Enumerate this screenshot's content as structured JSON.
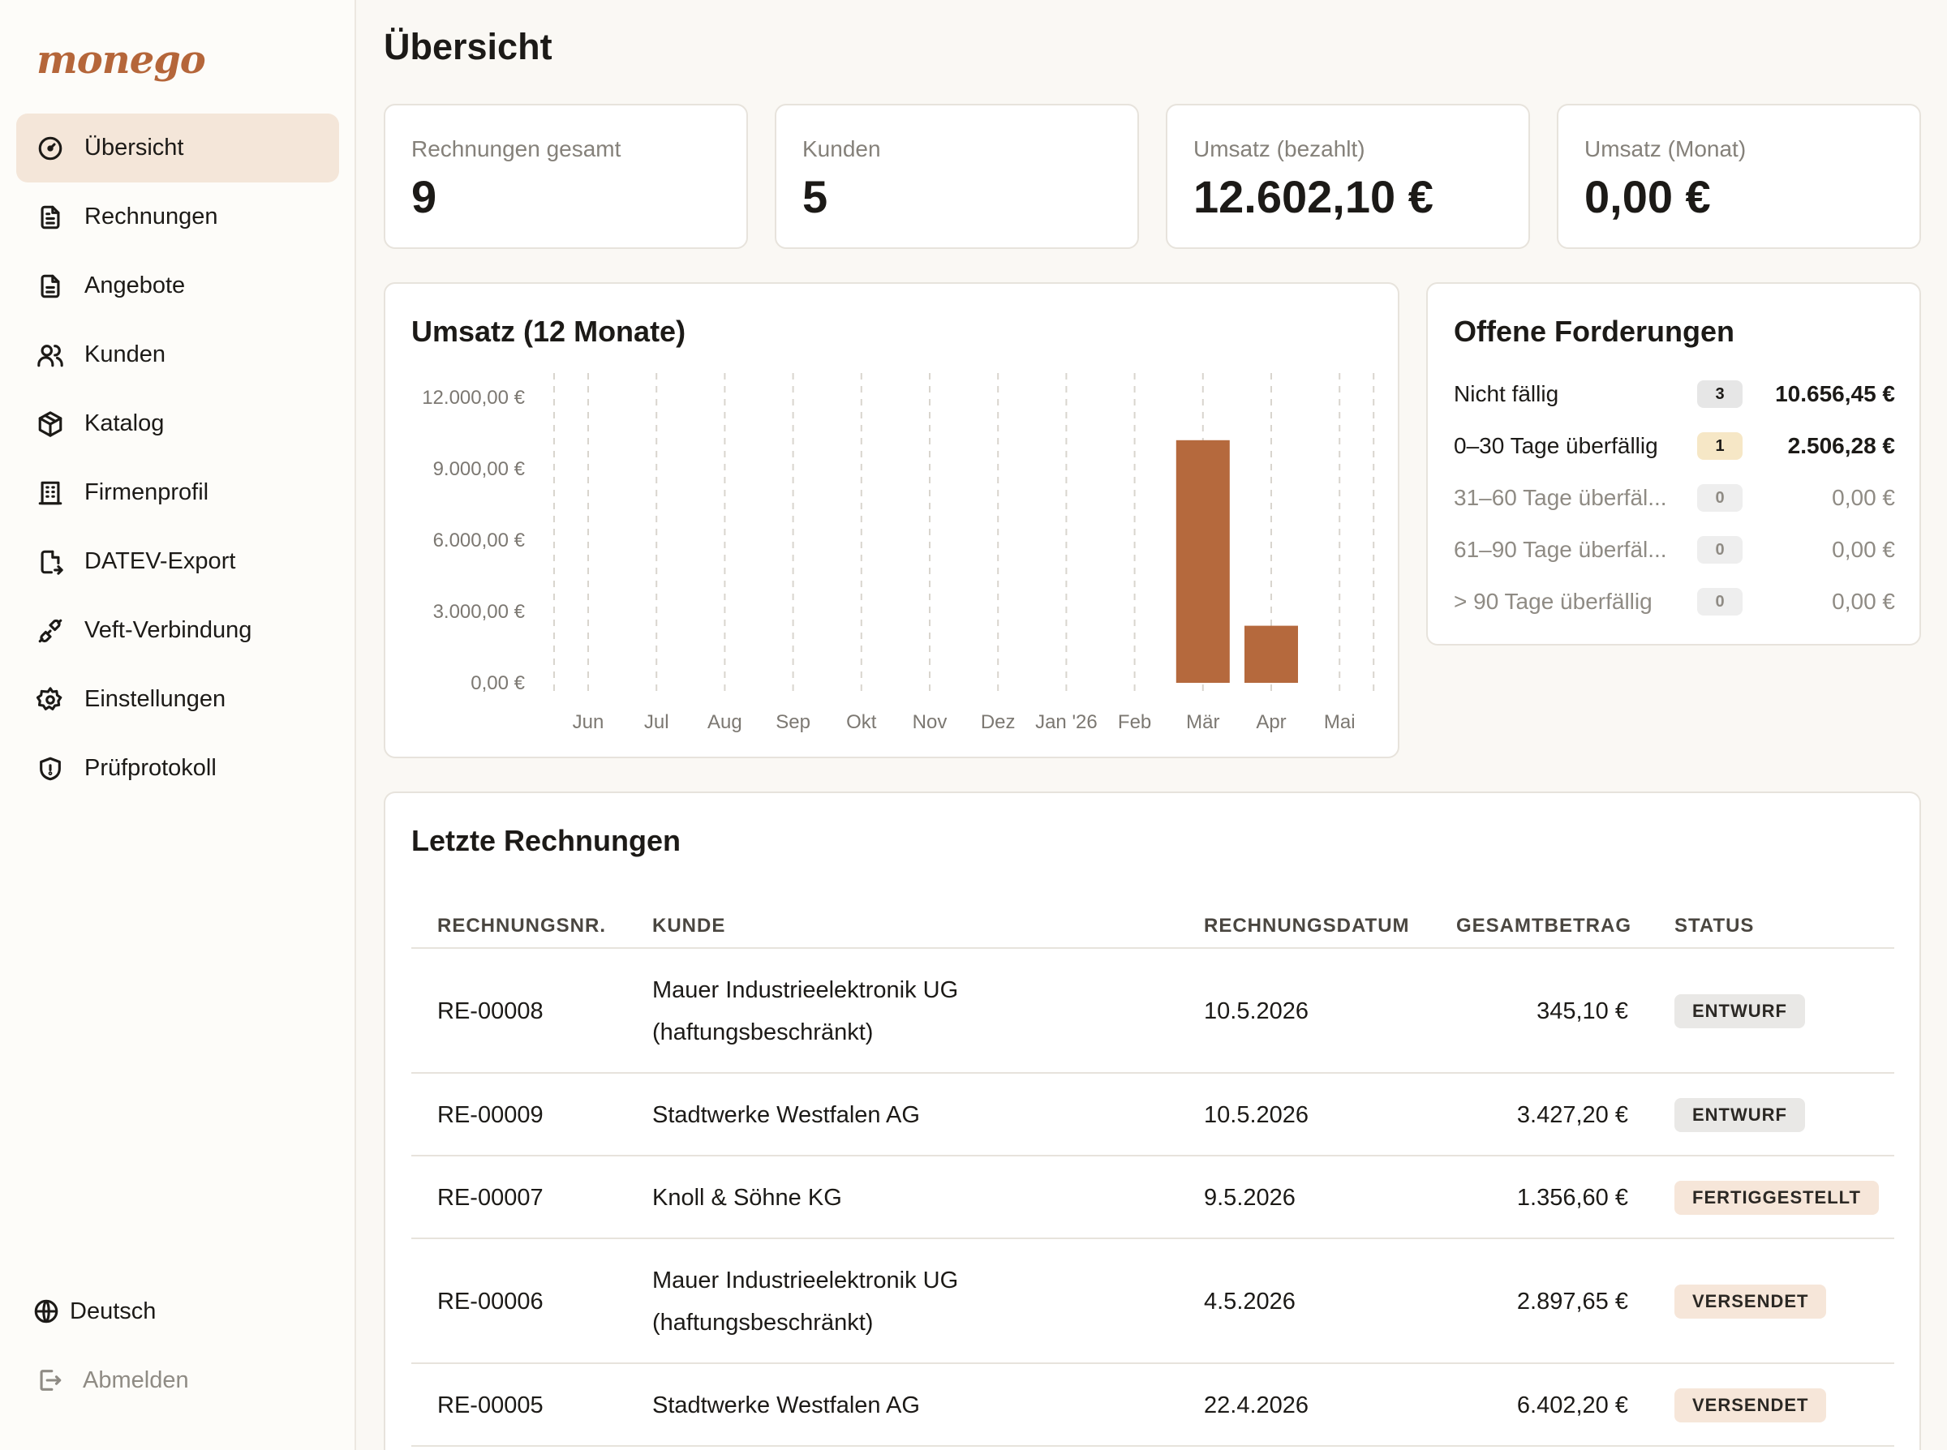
{
  "app": {
    "logo": "monego"
  },
  "sidebar": {
    "items": [
      {
        "label": "Übersicht",
        "icon": "gauge-icon",
        "active": true
      },
      {
        "label": "Rechnungen",
        "icon": "file-text-icon"
      },
      {
        "label": "Angebote",
        "icon": "file-icon"
      },
      {
        "label": "Kunden",
        "icon": "users-icon"
      },
      {
        "label": "Katalog",
        "icon": "package-icon"
      },
      {
        "label": "Firmenprofil",
        "icon": "building-icon"
      },
      {
        "label": "DATEV-Export",
        "icon": "file-export-icon"
      },
      {
        "label": "Veft-Verbindung",
        "icon": "plug-icon"
      },
      {
        "label": "Einstellungen",
        "icon": "gear-icon"
      },
      {
        "label": "Prüfprotokoll",
        "icon": "shield-icon"
      }
    ],
    "language": "Deutsch",
    "logout": "Abmelden"
  },
  "page": {
    "title": "Übersicht"
  },
  "stats": [
    {
      "label": "Rechnungen gesamt",
      "value": "9"
    },
    {
      "label": "Kunden",
      "value": "5"
    },
    {
      "label": "Umsatz (bezahlt)",
      "value": "12.602,10 €"
    },
    {
      "label": "Umsatz (Monat)",
      "value": "0,00 €"
    }
  ],
  "revenue_chart": {
    "title": "Umsatz (12 Monate)"
  },
  "chart_data": {
    "type": "bar",
    "title": "Umsatz (12 Monate)",
    "categories": [
      "Jun",
      "Jul",
      "Aug",
      "Sep",
      "Okt",
      "Nov",
      "Dez",
      "Jan '26",
      "Feb",
      "Mär",
      "Apr",
      "Mai"
    ],
    "values": [
      0,
      0,
      0,
      0,
      0,
      0,
      0,
      0,
      0,
      10200,
      2400,
      0
    ],
    "yticks": [
      "12.000,00 €",
      "9.000,00 €",
      "6.000,00 €",
      "3.000,00 €",
      "0,00 €"
    ],
    "ytick_values": [
      12000,
      9000,
      6000,
      3000,
      0
    ],
    "ylim": [
      0,
      12000
    ],
    "bar_color": "#b5693d",
    "grid": "vertical-dashed"
  },
  "receivables": {
    "title": "Offene Forderungen",
    "rows": [
      {
        "label": "Nicht fällig",
        "count": "3",
        "amount": "10.656,45 €",
        "badge_color": "#e6e6e6",
        "dim": false
      },
      {
        "label": "0–30 Tage überfällig",
        "count": "1",
        "amount": "2.506,28 €",
        "badge_color": "#f6e7c6",
        "dim": false
      },
      {
        "label": "31–60 Tage überfäl...",
        "count": "0",
        "amount": "0,00 €",
        "badge_color": "#eeeeee",
        "dim": true
      },
      {
        "label": "61–90 Tage überfäl...",
        "count": "0",
        "amount": "0,00 €",
        "badge_color": "#eeeeee",
        "dim": true
      },
      {
        "label": "> 90 Tage überfällig",
        "count": "0",
        "amount": "0,00 €",
        "badge_color": "#eeeeee",
        "dim": true
      }
    ]
  },
  "invoices": {
    "title": "Letzte Rechnungen",
    "columns": [
      "RECHNUNGSNR.",
      "KUNDE",
      "RECHNUNGSDATUM",
      "GESAMTBETRAG",
      "STATUS"
    ],
    "rows": [
      {
        "nr": "RE-00008",
        "kunde_l1": "Mauer Industrieelektronik UG",
        "kunde_l2": "(haftungsbeschränkt)",
        "datum": "10.5.2026",
        "betrag": "345,10 €",
        "status": "ENTWURF",
        "status_color": "#e9e8e6"
      },
      {
        "nr": "RE-00009",
        "kunde_l1": "Stadtwerke Westfalen AG",
        "kunde_l2": "",
        "datum": "10.5.2026",
        "betrag": "3.427,20 €",
        "status": "ENTWURF",
        "status_color": "#e9e8e6"
      },
      {
        "nr": "RE-00007",
        "kunde_l1": "Knoll & Söhne KG",
        "kunde_l2": "",
        "datum": "9.5.2026",
        "betrag": "1.356,60 €",
        "status": "FERTIGGESTELLT",
        "status_color": "#f6e6d9"
      },
      {
        "nr": "RE-00006",
        "kunde_l1": "Mauer Industrieelektronik UG",
        "kunde_l2": "(haftungsbeschränkt)",
        "datum": "4.5.2026",
        "betrag": "2.897,65 €",
        "status": "VERSENDET",
        "status_color": "#f6e6d9"
      },
      {
        "nr": "RE-00005",
        "kunde_l1": "Stadtwerke Westfalen AG",
        "kunde_l2": "",
        "datum": "22.4.2026",
        "betrag": "6.402,20 €",
        "status": "VERSENDET",
        "status_color": "#f6e6d9"
      }
    ]
  }
}
